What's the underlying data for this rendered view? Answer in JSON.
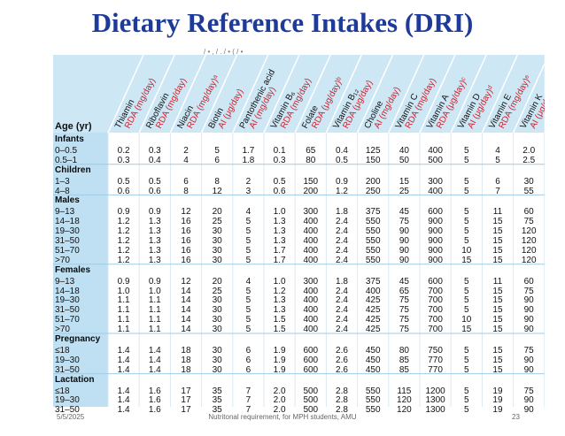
{
  "title": "Dietary Reference Intakes (DRI)",
  "faint_text": "/  •  ,  /  .  /  •  (  /  •",
  "table": {
    "age_header": "Age (yr)",
    "columns": [
      {
        "name": "Thiamin",
        "unit": "RDA (mg/day)"
      },
      {
        "name": "Riboflavin",
        "unit": "RDA (mg/day)"
      },
      {
        "name": "Niacin",
        "unit": "RDA (mg/day)ᵃ"
      },
      {
        "name": "Biotin",
        "unit": "AI (μg/day)"
      },
      {
        "name": "Pantothenic acid",
        "unit": "AI (mg/day)"
      },
      {
        "name": "Vitamin B₆",
        "unit": "RDA (mg/day)"
      },
      {
        "name": "Folate",
        "unit": "RDA (μg/day)ᵇ"
      },
      {
        "name": "Vitamin B₁₂",
        "unit": "RDA (μg/day)"
      },
      {
        "name": "Choline",
        "unit": "AI (mg/day)"
      },
      {
        "name": "Vitamin C",
        "unit": "RDA (mg/day)"
      },
      {
        "name": "Vitamin A",
        "unit": "RDA (μg/day)ᶜ"
      },
      {
        "name": "Vitamin D",
        "unit": "AI (μg/day)ᵈ"
      },
      {
        "name": "Vitamin E",
        "unit": "RDA (mg/day)ᵉ"
      },
      {
        "name": "Vitamin K",
        "unit": "AI (μg/day)"
      }
    ],
    "rows": [
      {
        "kind": "cat",
        "age": "Infants"
      },
      {
        "age": "0–0.5",
        "v": [
          "0.2",
          "0.3",
          "2",
          "5",
          "1.7",
          "0.1",
          "65",
          "0.4",
          "125",
          "40",
          "400",
          "5",
          "4",
          "2.0"
        ]
      },
      {
        "age": "0.5–1",
        "v": [
          "0.3",
          "0.4",
          "4",
          "6",
          "1.8",
          "0.3",
          "80",
          "0.5",
          "150",
          "50",
          "500",
          "5",
          "5",
          "2.5"
        ]
      },
      {
        "kind": "cat",
        "age": "Children"
      },
      {
        "age": "1–3",
        "v": [
          "0.5",
          "0.5",
          "6",
          "8",
          "2",
          "0.5",
          "150",
          "0.9",
          "200",
          "15",
          "300",
          "5",
          "6",
          "30"
        ]
      },
      {
        "age": "4–8",
        "v": [
          "0.6",
          "0.6",
          "8",
          "12",
          "3",
          "0.6",
          "200",
          "1.2",
          "250",
          "25",
          "400",
          "5",
          "7",
          "55"
        ]
      },
      {
        "kind": "cat",
        "age": "Males"
      },
      {
        "age": "9–13",
        "v": [
          "0.9",
          "0.9",
          "12",
          "20",
          "4",
          "1.0",
          "300",
          "1.8",
          "375",
          "45",
          "600",
          "5",
          "11",
          "60"
        ]
      },
      {
        "age": "14–18",
        "v": [
          "1.2",
          "1.3",
          "16",
          "25",
          "5",
          "1.3",
          "400",
          "2.4",
          "550",
          "75",
          "900",
          "5",
          "15",
          "75"
        ]
      },
      {
        "age": "19–30",
        "v": [
          "1.2",
          "1.3",
          "16",
          "30",
          "5",
          "1.3",
          "400",
          "2.4",
          "550",
          "90",
          "900",
          "5",
          "15",
          "120"
        ]
      },
      {
        "age": "31–50",
        "v": [
          "1.2",
          "1.3",
          "16",
          "30",
          "5",
          "1.3",
          "400",
          "2.4",
          "550",
          "90",
          "900",
          "5",
          "15",
          "120"
        ]
      },
      {
        "age": "51–70",
        "v": [
          "1.2",
          "1.3",
          "16",
          "30",
          "5",
          "1.7",
          "400",
          "2.4",
          "550",
          "90",
          "900",
          "10",
          "15",
          "120"
        ]
      },
      {
        "age": ">70",
        "v": [
          "1.2",
          "1.3",
          "16",
          "30",
          "5",
          "1.7",
          "400",
          "2.4",
          "550",
          "90",
          "900",
          "15",
          "15",
          "120"
        ]
      },
      {
        "kind": "cat",
        "age": "Females"
      },
      {
        "age": "9–13",
        "v": [
          "0.9",
          "0.9",
          "12",
          "20",
          "4",
          "1.0",
          "300",
          "1.8",
          "375",
          "45",
          "600",
          "5",
          "11",
          "60"
        ]
      },
      {
        "age": "14–18",
        "v": [
          "1.0",
          "1.0",
          "14",
          "25",
          "5",
          "1.2",
          "400",
          "2.4",
          "400",
          "65",
          "700",
          "5",
          "15",
          "75"
        ]
      },
      {
        "age": "19–30",
        "v": [
          "1.1",
          "1.1",
          "14",
          "30",
          "5",
          "1.3",
          "400",
          "2.4",
          "425",
          "75",
          "700",
          "5",
          "15",
          "90"
        ]
      },
      {
        "age": "31–50",
        "v": [
          "1.1",
          "1.1",
          "14",
          "30",
          "5",
          "1.3",
          "400",
          "2.4",
          "425",
          "75",
          "700",
          "5",
          "15",
          "90"
        ]
      },
      {
        "age": "51–70",
        "v": [
          "1.1",
          "1.1",
          "14",
          "30",
          "5",
          "1.5",
          "400",
          "2.4",
          "425",
          "75",
          "700",
          "10",
          "15",
          "90"
        ]
      },
      {
        "age": ">70",
        "v": [
          "1.1",
          "1.1",
          "14",
          "30",
          "5",
          "1.5",
          "400",
          "2.4",
          "425",
          "75",
          "700",
          "15",
          "15",
          "90"
        ]
      },
      {
        "kind": "cat",
        "age": "Pregnancy"
      },
      {
        "age": "≤18",
        "v": [
          "1.4",
          "1.4",
          "18",
          "30",
          "6",
          "1.9",
          "600",
          "2.6",
          "450",
          "80",
          "750",
          "5",
          "15",
          "75"
        ]
      },
      {
        "age": "19–30",
        "v": [
          "1.4",
          "1.4",
          "18",
          "30",
          "6",
          "1.9",
          "600",
          "2.6",
          "450",
          "85",
          "770",
          "5",
          "15",
          "90"
        ]
      },
      {
        "age": "31–50",
        "v": [
          "1.4",
          "1.4",
          "18",
          "30",
          "6",
          "1.9",
          "600",
          "2.6",
          "450",
          "85",
          "770",
          "5",
          "15",
          "90"
        ]
      },
      {
        "kind": "cat",
        "age": "Lactation"
      },
      {
        "age": "≤18",
        "v": [
          "1.4",
          "1.6",
          "17",
          "35",
          "7",
          "2.0",
          "500",
          "2.8",
          "550",
          "115",
          "1200",
          "5",
          "19",
          "75"
        ]
      },
      {
        "age": "19–30",
        "v": [
          "1.4",
          "1.6",
          "17",
          "35",
          "7",
          "2.0",
          "500",
          "2.8",
          "550",
          "120",
          "1300",
          "5",
          "19",
          "90"
        ]
      },
      {
        "age": "31–50",
        "v": [
          "1.4",
          "1.6",
          "17",
          "35",
          "7",
          "2.0",
          "500",
          "2.8",
          "550",
          "120",
          "1300",
          "5",
          "19",
          "90"
        ]
      }
    ]
  },
  "footer": {
    "date": "5/5/2025",
    "caption": "Nutritonal requirement, for MPH students, AMU",
    "page": "23"
  },
  "colors": {
    "title": "#1f3b99",
    "header_bg": "#cde7f5",
    "age_col_bg": "#bfe0f2",
    "unit_red": "#d0202a",
    "row_band": "#e3f2fb"
  }
}
